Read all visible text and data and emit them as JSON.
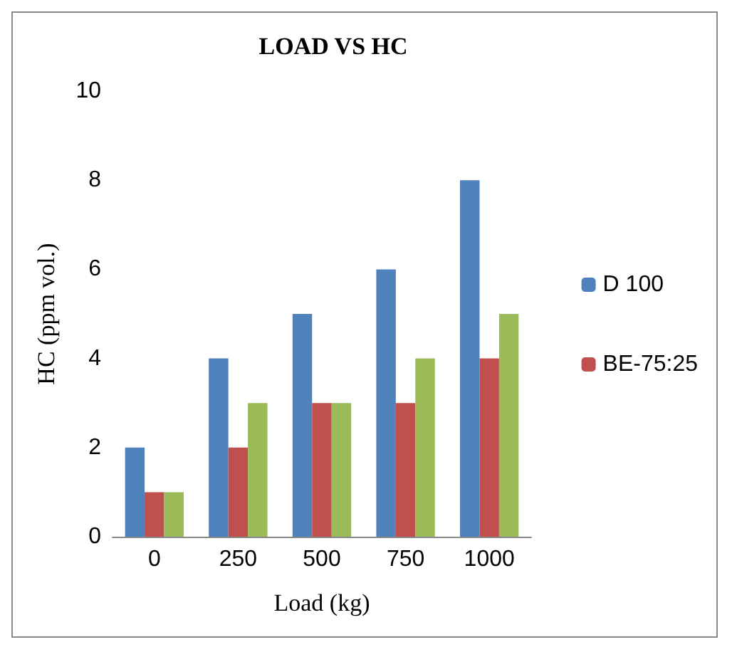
{
  "chart_data": {
    "type": "bar",
    "title": "LOAD VS HC",
    "xlabel": "Load (kg)",
    "ylabel": "HC (ppm vol.)",
    "categories": [
      "0",
      "250",
      "500",
      "750",
      "1000"
    ],
    "series": [
      {
        "name": "D 100",
        "color": "#4f81bd",
        "values": [
          2,
          4,
          5,
          6,
          8
        ]
      },
      {
        "name": "BE-75:25",
        "color": "#c0504d",
        "values": [
          1,
          2,
          3,
          3,
          4
        ]
      },
      {
        "color": "#9bbb59",
        "values": [
          1,
          3,
          3,
          4,
          5
        ]
      }
    ],
    "ylim": [
      0,
      10
    ],
    "yticks": [
      0,
      2,
      4,
      6,
      8,
      10
    ],
    "grid": false,
    "legend": "right"
  }
}
